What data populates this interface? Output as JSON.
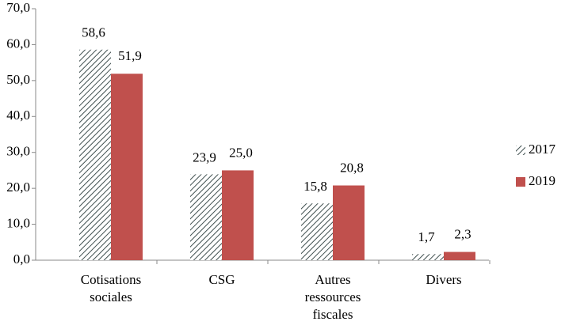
{
  "chart_data": {
    "type": "bar",
    "categories": [
      "Cotisations sociales",
      "CSG",
      "Autres ressources fiscales",
      "Divers"
    ],
    "series": [
      {
        "name": "2017",
        "color": "#3f4f4f",
        "hatch": true,
        "values": [
          58.6,
          23.9,
          15.8,
          1.7
        ],
        "value_labels": [
          "58,6",
          "23,9",
          "15,8",
          "1,7"
        ]
      },
      {
        "name": "2019",
        "color": "#c0504d",
        "hatch": false,
        "values": [
          51.9,
          25.0,
          20.8,
          2.3
        ],
        "value_labels": [
          "51,9",
          "25,0",
          "20,8",
          "2,3"
        ]
      }
    ],
    "ylim": [
      0,
      70
    ],
    "yticks": [
      {
        "value": 0,
        "label": "0,0"
      },
      {
        "value": 10,
        "label": "10,0"
      },
      {
        "value": 20,
        "label": "20,0"
      },
      {
        "value": 30,
        "label": "30,0"
      },
      {
        "value": 40,
        "label": "40,0"
      },
      {
        "value": 50,
        "label": "50,0"
      },
      {
        "value": 60,
        "label": "60,0"
      },
      {
        "value": 70,
        "label": "70,0"
      }
    ],
    "grid": false,
    "legend": "right"
  }
}
